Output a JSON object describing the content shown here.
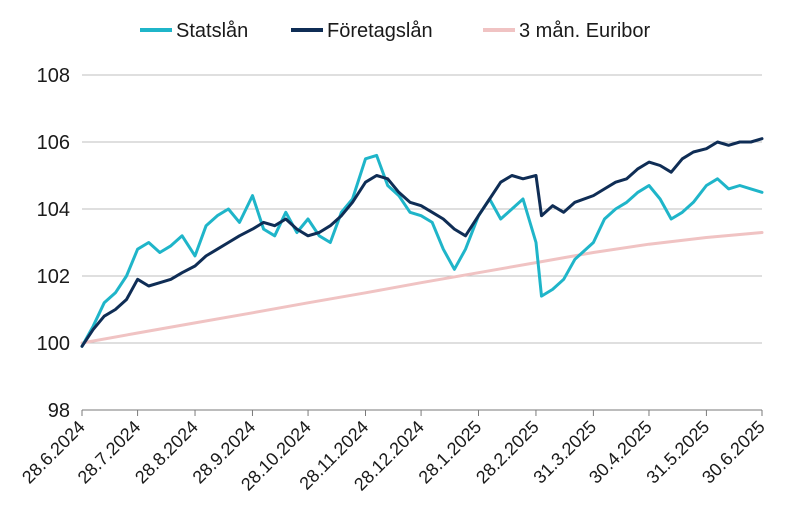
{
  "chart_data": {
    "type": "line",
    "title": "",
    "xlabel": "",
    "ylabel": "",
    "ylim": [
      98,
      108
    ],
    "yticks": [
      98,
      100,
      102,
      104,
      106,
      108
    ],
    "grid": "horizontal",
    "legend_position": "top",
    "x_tick_labels": [
      "28.6.2024",
      "28.7.2024",
      "28.8.2024",
      "28.9.2024",
      "28.10.2024",
      "28.11.2024",
      "28.12.2024",
      "28.1.2025",
      "28.2.2025",
      "31.3.2025",
      "30.4.2025",
      "31.5.2025",
      "30.6.2025"
    ],
    "series": [
      {
        "name": "Statslån",
        "color": "#1fb5c9",
        "x": [
          "28.6.2024",
          "4.7.2024",
          "10.7.2024",
          "16.7.2024",
          "22.7.2024",
          "28.7.2024",
          "3.8.2024",
          "9.8.2024",
          "15.8.2024",
          "21.8.2024",
          "28.8.2024",
          "3.9.2024",
          "9.9.2024",
          "15.9.2024",
          "21.9.2024",
          "28.9.2024",
          "4.10.2024",
          "10.10.2024",
          "16.10.2024",
          "22.10.2024",
          "28.10.2024",
          "3.11.2024",
          "9.11.2024",
          "15.11.2024",
          "21.11.2024",
          "28.11.2024",
          "4.12.2024",
          "10.12.2024",
          "16.12.2024",
          "22.12.2024",
          "28.12.2024",
          "3.1.2025",
          "9.1.2025",
          "15.1.2025",
          "21.1.2025",
          "28.1.2025",
          "3.2.2025",
          "9.2.2025",
          "15.2.2025",
          "21.2.2025",
          "28.2.2025",
          "3.3.2025",
          "9.3.2025",
          "15.3.2025",
          "21.3.2025",
          "31.3.2025",
          "6.4.2025",
          "12.4.2025",
          "18.4.2025",
          "24.4.2025",
          "30.4.2025",
          "6.5.2025",
          "12.5.2025",
          "18.5.2025",
          "24.5.2025",
          "31.5.2025",
          "6.6.2025",
          "12.6.2025",
          "18.6.2025",
          "24.6.2025",
          "30.6.2025"
        ],
        "values": [
          99.9,
          100.5,
          101.2,
          101.5,
          102.0,
          102.8,
          103.0,
          102.7,
          102.9,
          103.2,
          102.6,
          103.5,
          103.8,
          104.0,
          103.6,
          104.4,
          103.4,
          103.2,
          103.9,
          103.3,
          103.7,
          103.2,
          103.0,
          103.9,
          104.3,
          105.5,
          105.6,
          104.7,
          104.4,
          103.9,
          103.8,
          103.6,
          102.8,
          102.2,
          102.8,
          103.8,
          104.3,
          103.7,
          104.0,
          104.3,
          103.0,
          101.4,
          101.6,
          101.9,
          102.5,
          103.0,
          103.7,
          104.0,
          104.2,
          104.5,
          104.7,
          104.3,
          103.7,
          103.9,
          104.2,
          104.7,
          104.9,
          104.6,
          104.7,
          104.6,
          104.5
        ]
      },
      {
        "name": "Företagslån",
        "color": "#0f2d55",
        "x": [
          "28.6.2024",
          "4.7.2024",
          "10.7.2024",
          "16.7.2024",
          "22.7.2024",
          "28.7.2024",
          "3.8.2024",
          "9.8.2024",
          "15.8.2024",
          "21.8.2024",
          "28.8.2024",
          "3.9.2024",
          "9.9.2024",
          "15.9.2024",
          "21.9.2024",
          "28.9.2024",
          "4.10.2024",
          "10.10.2024",
          "16.10.2024",
          "22.10.2024",
          "28.10.2024",
          "3.11.2024",
          "9.11.2024",
          "15.11.2024",
          "21.11.2024",
          "28.11.2024",
          "4.12.2024",
          "10.12.2024",
          "16.12.2024",
          "22.12.2024",
          "28.12.2024",
          "3.1.2025",
          "9.1.2025",
          "15.1.2025",
          "21.1.2025",
          "28.1.2025",
          "3.2.2025",
          "9.2.2025",
          "15.2.2025",
          "21.2.2025",
          "28.2.2025",
          "3.3.2025",
          "9.3.2025",
          "15.3.2025",
          "21.3.2025",
          "31.3.2025",
          "6.4.2025",
          "12.4.2025",
          "18.4.2025",
          "24.4.2025",
          "30.4.2025",
          "6.5.2025",
          "12.5.2025",
          "18.5.2025",
          "24.5.2025",
          "31.5.2025",
          "6.6.2025",
          "12.6.2025",
          "18.6.2025",
          "24.6.2025",
          "30.6.2025"
        ],
        "values": [
          99.9,
          100.4,
          100.8,
          101.0,
          101.3,
          101.9,
          101.7,
          101.8,
          101.9,
          102.1,
          102.3,
          102.6,
          102.8,
          103.0,
          103.2,
          103.4,
          103.6,
          103.5,
          103.7,
          103.4,
          103.2,
          103.3,
          103.5,
          103.8,
          104.2,
          104.8,
          105.0,
          104.9,
          104.5,
          104.2,
          104.1,
          103.9,
          103.7,
          103.4,
          103.2,
          103.8,
          104.3,
          104.8,
          105.0,
          104.9,
          105.0,
          103.8,
          104.1,
          103.9,
          104.2,
          104.4,
          104.6,
          104.8,
          104.9,
          105.2,
          105.4,
          105.3,
          105.1,
          105.5,
          105.7,
          105.8,
          106.0,
          105.9,
          106.0,
          106.0,
          106.1
        ]
      },
      {
        "name": "3 mån. Euribor",
        "color": "#f0c3c3",
        "x": [
          "28.6.2024",
          "28.7.2024",
          "28.8.2024",
          "28.9.2024",
          "28.10.2024",
          "28.11.2024",
          "28.12.2024",
          "28.1.2025",
          "28.2.2025",
          "31.3.2025",
          "30.4.2025",
          "31.5.2025",
          "30.6.2025"
        ],
        "values": [
          100.0,
          100.3,
          100.6,
          100.9,
          101.2,
          101.5,
          101.8,
          102.1,
          102.4,
          102.7,
          102.95,
          103.15,
          103.3
        ]
      }
    ]
  }
}
